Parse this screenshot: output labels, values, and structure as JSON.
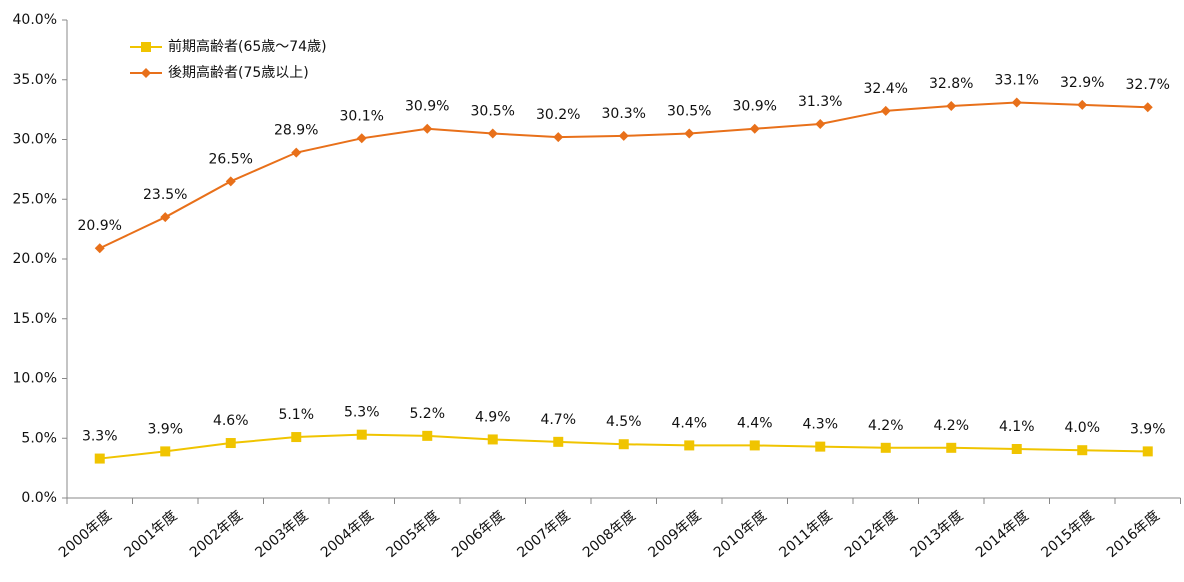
{
  "chart_data": {
    "type": "line",
    "categories": [
      "2000年度",
      "2001年度",
      "2002年度",
      "2003年度",
      "2004年度",
      "2005年度",
      "2006年度",
      "2007年度",
      "2008年度",
      "2009年度",
      "2010年度",
      "2011年度",
      "2012年度",
      "2013年度",
      "2014年度",
      "2015年度",
      "2016年度"
    ],
    "series": [
      {
        "name": "前期高齢者(65歳〜74歳)",
        "color": "#f0c400",
        "marker": "square",
        "values": [
          3.3,
          3.9,
          4.6,
          5.1,
          5.3,
          5.2,
          4.9,
          4.7,
          4.5,
          4.4,
          4.4,
          4.3,
          4.2,
          4.2,
          4.1,
          4.0,
          3.9
        ],
        "value_labels": [
          "3.3%",
          "3.9%",
          "4.6%",
          "5.1%",
          "5.3%",
          "5.2%",
          "4.9%",
          "4.7%",
          "4.5%",
          "4.4%",
          "4.4%",
          "4.3%",
          "4.2%",
          "4.2%",
          "4.1%",
          "4.0%",
          "3.9%"
        ]
      },
      {
        "name": "後期高齢者(75歳以上)",
        "color": "#e8701a",
        "marker": "diamond",
        "values": [
          20.9,
          23.5,
          26.5,
          28.9,
          30.1,
          30.9,
          30.5,
          30.2,
          30.3,
          30.5,
          30.9,
          31.3,
          32.4,
          32.8,
          33.1,
          32.9,
          32.7
        ],
        "value_labels": [
          "20.9%",
          "23.5%",
          "26.5%",
          "28.9%",
          "30.1%",
          "30.9%",
          "30.5%",
          "30.2%",
          "30.3%",
          "30.5%",
          "30.9%",
          "31.3%",
          "32.4%",
          "32.8%",
          "33.1%",
          "32.9%",
          "32.7%"
        ]
      }
    ],
    "ylim": [
      0,
      40
    ],
    "yticks": [
      {
        "value": 0,
        "label": "0.0%"
      },
      {
        "value": 5,
        "label": "5.0%"
      },
      {
        "value": 10,
        "label": "10.0%"
      },
      {
        "value": 15,
        "label": "15.0%"
      },
      {
        "value": 20,
        "label": "20.0%"
      },
      {
        "value": 25,
        "label": "25.0%"
      },
      {
        "value": 30,
        "label": "30.0%"
      },
      {
        "value": 35,
        "label": "35.0%"
      },
      {
        "value": 40,
        "label": "40.0%"
      }
    ],
    "grid": false,
    "legend": "upper left"
  }
}
